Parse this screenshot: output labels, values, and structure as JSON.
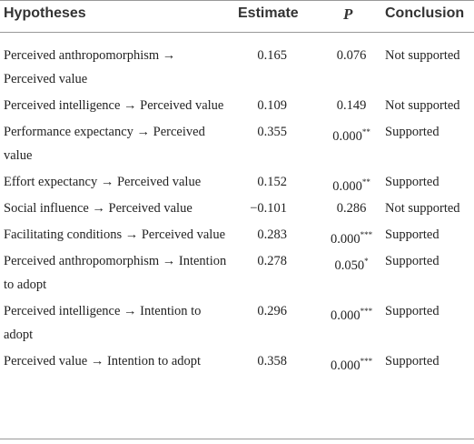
{
  "table": {
    "header": [
      "Hypotheses",
      "Estimate",
      "P",
      "Conclusion"
    ],
    "rows": [
      {
        "hypothesis": "Perceived anthropomorphism → Perceived value",
        "estimate": "0.165",
        "p": "0.076",
        "conclusion": "Not supported"
      },
      {
        "hypothesis": "Perceived intelligence → Perceived value",
        "estimate": "0.109",
        "p": "0.149",
        "conclusion": "Not supported"
      },
      {
        "hypothesis": "Performance expectancy → Perceived value",
        "estimate": "0.355",
        "p": "0.000",
        "sig": "**",
        "conclusion": "Supported"
      },
      {
        "hypothesis": "Effort expectancy → Perceived value",
        "estimate": "0.152",
        "p": "0.000",
        "sig": "**",
        "conclusion": "Supported"
      },
      {
        "hypothesis": "Social influence → Perceived value",
        "estimate": "−0.101",
        "p": "0.286",
        "conclusion": "Not supported"
      },
      {
        "hypothesis": "Facilitating conditions → Perceived value",
        "estimate": "0.283",
        "p": "0.000",
        "sig": "***",
        "conclusion": "Supported"
      },
      {
        "hypothesis": "Perceived anthropomorphism → Intention to adopt",
        "estimate": "0.278",
        "p": "0.050",
        "sig": "*",
        "conclusion": "Supported"
      },
      {
        "hypothesis": "Perceived intelligence → Intention to adopt",
        "estimate": "0.296",
        "p": "0.000",
        "sig": "***",
        "conclusion": "Supported"
      },
      {
        "hypothesis": "Perceived value → Intention to adopt",
        "estimate": "0.358",
        "p": "0.000",
        "sig": "***",
        "conclusion": "Supported"
      }
    ]
  }
}
